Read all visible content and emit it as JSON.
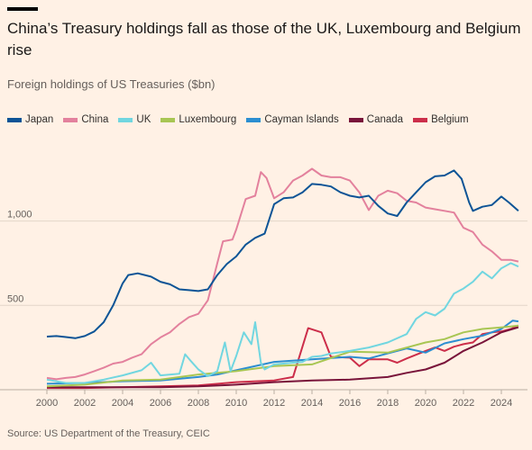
{
  "title": "China’s Treasury holdings fall as those of the UK, Luxembourg and Belgium rise",
  "subtitle": "Foreign holdings of US Treasuries ($bn)",
  "source": "Source: US Department of the Treasury, CEIC",
  "colors": {
    "background": "#fff1e5",
    "grid": "#e3d6c9",
    "text": "#66605c"
  },
  "chart_data": {
    "type": "line",
    "title": "China’s Treasury holdings fall as those of the UK, Luxembourg and Belgium rise",
    "subtitle": "Foreign holdings of US Treasuries ($bn)",
    "xlabel": "",
    "ylabel": "",
    "xlim": [
      2000,
      2025
    ],
    "ylim": [
      0,
      1350
    ],
    "x_ticks": [
      "2000",
      "2002",
      "2004",
      "2006",
      "2008",
      "2010",
      "2012",
      "2014",
      "2016",
      "2018",
      "2020",
      "2022",
      "2024"
    ],
    "x_tick_values": [
      2000,
      2002,
      2004,
      2006,
      2008,
      2010,
      2012,
      2014,
      2016,
      2018,
      2020,
      2022,
      2024
    ],
    "y_ticks": [
      "500",
      "1,000"
    ],
    "y_tick_values": [
      500,
      1000
    ],
    "grid": true,
    "legend_position": "top",
    "series": [
      {
        "name": "Japan",
        "color": "#0d5496",
        "points": [
          [
            2000,
            315
          ],
          [
            2000.5,
            318
          ],
          [
            2001,
            312
          ],
          [
            2001.5,
            305
          ],
          [
            2002,
            318
          ],
          [
            2002.5,
            345
          ],
          [
            2003,
            400
          ],
          [
            2003.5,
            500
          ],
          [
            2004,
            630
          ],
          [
            2004.3,
            680
          ],
          [
            2004.8,
            690
          ],
          [
            2005.5,
            670
          ],
          [
            2006,
            640
          ],
          [
            2006.5,
            625
          ],
          [
            2007,
            595
          ],
          [
            2007.5,
            590
          ],
          [
            2008,
            585
          ],
          [
            2008.5,
            595
          ],
          [
            2009,
            680
          ],
          [
            2009.5,
            745
          ],
          [
            2010,
            790
          ],
          [
            2010.5,
            860
          ],
          [
            2011,
            900
          ],
          [
            2011.5,
            925
          ],
          [
            2012,
            1100
          ],
          [
            2012.5,
            1135
          ],
          [
            2013,
            1140
          ],
          [
            2013.5,
            1170
          ],
          [
            2014,
            1220
          ],
          [
            2014.5,
            1215
          ],
          [
            2015,
            1205
          ],
          [
            2015.5,
            1170
          ],
          [
            2016,
            1150
          ],
          [
            2016.5,
            1140
          ],
          [
            2017,
            1150
          ],
          [
            2017.5,
            1090
          ],
          [
            2018,
            1045
          ],
          [
            2018.5,
            1030
          ],
          [
            2019,
            1110
          ],
          [
            2019.5,
            1170
          ],
          [
            2020,
            1230
          ],
          [
            2020.5,
            1265
          ],
          [
            2021,
            1270
          ],
          [
            2021.5,
            1300
          ],
          [
            2021.9,
            1250
          ],
          [
            2022.3,
            1110
          ],
          [
            2022.5,
            1060
          ],
          [
            2023,
            1085
          ],
          [
            2023.5,
            1095
          ],
          [
            2024,
            1145
          ],
          [
            2024.4,
            1110
          ],
          [
            2024.9,
            1060
          ]
        ]
      },
      {
        "name": "China",
        "color": "#e3819d",
        "points": [
          [
            2000,
            70
          ],
          [
            2000.5,
            62
          ],
          [
            2001,
            70
          ],
          [
            2001.5,
            75
          ],
          [
            2002,
            90
          ],
          [
            2002.5,
            110
          ],
          [
            2003,
            130
          ],
          [
            2003.5,
            155
          ],
          [
            2004,
            165
          ],
          [
            2004.5,
            190
          ],
          [
            2005,
            210
          ],
          [
            2005.5,
            270
          ],
          [
            2006,
            310
          ],
          [
            2006.5,
            340
          ],
          [
            2007,
            390
          ],
          [
            2007.5,
            430
          ],
          [
            2008,
            450
          ],
          [
            2008.5,
            530
          ],
          [
            2009,
            750
          ],
          [
            2009.3,
            880
          ],
          [
            2009.8,
            890
          ],
          [
            2010,
            950
          ],
          [
            2010.5,
            1130
          ],
          [
            2011,
            1150
          ],
          [
            2011.3,
            1290
          ],
          [
            2011.6,
            1255
          ],
          [
            2012,
            1135
          ],
          [
            2012.5,
            1170
          ],
          [
            2013,
            1240
          ],
          [
            2013.5,
            1270
          ],
          [
            2014,
            1310
          ],
          [
            2014.5,
            1270
          ],
          [
            2015,
            1260
          ],
          [
            2015.5,
            1260
          ],
          [
            2016,
            1240
          ],
          [
            2016.5,
            1170
          ],
          [
            2017,
            1065
          ],
          [
            2017.5,
            1150
          ],
          [
            2018,
            1180
          ],
          [
            2018.5,
            1165
          ],
          [
            2019,
            1120
          ],
          [
            2019.5,
            1110
          ],
          [
            2020,
            1080
          ],
          [
            2020.5,
            1070
          ],
          [
            2021,
            1060
          ],
          [
            2021.5,
            1050
          ],
          [
            2022,
            960
          ],
          [
            2022.5,
            935
          ],
          [
            2023,
            860
          ],
          [
            2023.5,
            820
          ],
          [
            2024,
            770
          ],
          [
            2024.5,
            770
          ],
          [
            2024.9,
            760
          ]
        ]
      },
      {
        "name": "UK",
        "color": "#71d6e0",
        "points": [
          [
            2000,
            60
          ],
          [
            2001,
            40
          ],
          [
            2002,
            40
          ],
          [
            2003,
            60
          ],
          [
            2004,
            85
          ],
          [
            2005,
            115
          ],
          [
            2005.5,
            160
          ],
          [
            2006,
            85
          ],
          [
            2007,
            95
          ],
          [
            2007.3,
            210
          ],
          [
            2007.6,
            170
          ],
          [
            2008,
            120
          ],
          [
            2008.5,
            80
          ],
          [
            2009,
            110
          ],
          [
            2009.4,
            280
          ],
          [
            2009.7,
            110
          ],
          [
            2010,
            200
          ],
          [
            2010.4,
            340
          ],
          [
            2010.8,
            270
          ],
          [
            2011,
            400
          ],
          [
            2011.3,
            160
          ],
          [
            2011.5,
            120
          ],
          [
            2012,
            150
          ],
          [
            2012.5,
            155
          ],
          [
            2013,
            160
          ],
          [
            2013.5,
            165
          ],
          [
            2014,
            195
          ],
          [
            2014.5,
            200
          ],
          [
            2015,
            215
          ],
          [
            2016,
            230
          ],
          [
            2017,
            250
          ],
          [
            2018,
            280
          ],
          [
            2019,
            330
          ],
          [
            2019.5,
            420
          ],
          [
            2020,
            460
          ],
          [
            2020.5,
            440
          ],
          [
            2021,
            480
          ],
          [
            2021.5,
            570
          ],
          [
            2022,
            600
          ],
          [
            2022.5,
            640
          ],
          [
            2023,
            700
          ],
          [
            2023.5,
            660
          ],
          [
            2024,
            720
          ],
          [
            2024.5,
            750
          ],
          [
            2024.9,
            730
          ]
        ]
      },
      {
        "name": "Luxembourg",
        "color": "#a8c653",
        "points": [
          [
            2000,
            20
          ],
          [
            2002,
            30
          ],
          [
            2004,
            55
          ],
          [
            2006,
            60
          ],
          [
            2008,
            90
          ],
          [
            2010,
            110
          ],
          [
            2012,
            140
          ],
          [
            2014,
            150
          ],
          [
            2016,
            225
          ],
          [
            2018,
            220
          ],
          [
            2020,
            280
          ],
          [
            2021,
            300
          ],
          [
            2022,
            340
          ],
          [
            2023,
            360
          ],
          [
            2024,
            370
          ],
          [
            2024.5,
            375
          ],
          [
            2024.9,
            380
          ]
        ]
      },
      {
        "name": "Cayman Islands",
        "color": "#2c8ed1",
        "points": [
          [
            2000,
            35
          ],
          [
            2002,
            40
          ],
          [
            2004,
            50
          ],
          [
            2006,
            55
          ],
          [
            2008,
            75
          ],
          [
            2009,
            90
          ],
          [
            2010,
            115
          ],
          [
            2012,
            165
          ],
          [
            2014,
            180
          ],
          [
            2016,
            195
          ],
          [
            2017,
            185
          ],
          [
            2018,
            215
          ],
          [
            2019,
            245
          ],
          [
            2020,
            220
          ],
          [
            2021,
            275
          ],
          [
            2022,
            300
          ],
          [
            2023,
            320
          ],
          [
            2024,
            360
          ],
          [
            2024.6,
            410
          ],
          [
            2024.9,
            405
          ]
        ]
      },
      {
        "name": "Canada",
        "color": "#79143a",
        "points": [
          [
            2000,
            15
          ],
          [
            2002,
            15
          ],
          [
            2004,
            15
          ],
          [
            2006,
            15
          ],
          [
            2008,
            20
          ],
          [
            2010,
            30
          ],
          [
            2012,
            45
          ],
          [
            2014,
            55
          ],
          [
            2016,
            60
          ],
          [
            2018,
            75
          ],
          [
            2019,
            100
          ],
          [
            2020,
            120
          ],
          [
            2021,
            160
          ],
          [
            2022,
            230
          ],
          [
            2023,
            280
          ],
          [
            2024,
            340
          ],
          [
            2024.6,
            360
          ],
          [
            2024.9,
            370
          ]
        ]
      },
      {
        "name": "Belgium",
        "color": "#cc2e4a",
        "points": [
          [
            2000,
            10
          ],
          [
            2002,
            10
          ],
          [
            2004,
            15
          ],
          [
            2006,
            20
          ],
          [
            2008,
            25
          ],
          [
            2010,
            45
          ],
          [
            2012,
            55
          ],
          [
            2013,
            75
          ],
          [
            2013.8,
            365
          ],
          [
            2014.5,
            340
          ],
          [
            2015,
            195
          ],
          [
            2016,
            190
          ],
          [
            2016.5,
            140
          ],
          [
            2017,
            180
          ],
          [
            2018,
            180
          ],
          [
            2018.5,
            160
          ],
          [
            2019,
            185
          ],
          [
            2020,
            230
          ],
          [
            2020.5,
            250
          ],
          [
            2021,
            230
          ],
          [
            2021.5,
            255
          ],
          [
            2022,
            270
          ],
          [
            2022.5,
            280
          ],
          [
            2023,
            330
          ],
          [
            2023.5,
            340
          ],
          [
            2024,
            345
          ],
          [
            2024.5,
            360
          ],
          [
            2024.9,
            380
          ]
        ]
      }
    ]
  }
}
